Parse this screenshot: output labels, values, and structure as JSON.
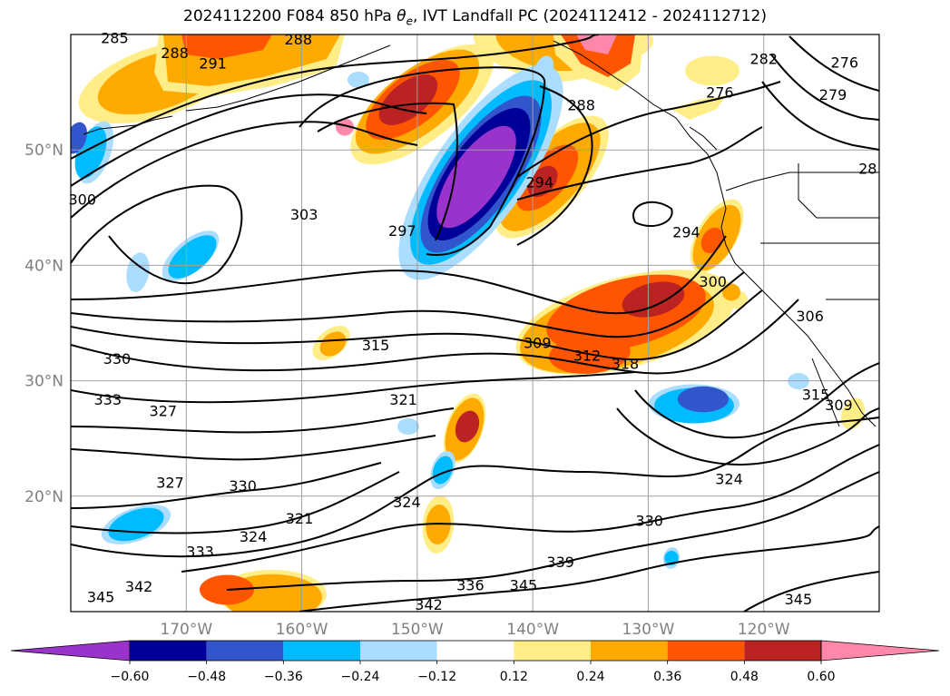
{
  "title": {
    "prefix": "2024112200 F084 850 hPa ",
    "theta": "θ",
    "theta_sub": "e",
    "suffix": ", IVT Landfall PC (2024112412 - 2024112712)"
  },
  "chart_data": {
    "type": "heatmap",
    "description_of_fields": {
      "filled": "IVT Landfall PC",
      "contours": "850 hPa theta-e (K)"
    },
    "lat_ticks": [
      "50°N",
      "40°N",
      "30°N",
      "20°N"
    ],
    "lat_values": [
      50,
      40,
      30,
      20
    ],
    "lon_ticks": [
      "170°W",
      "160°W",
      "150°W",
      "140°W",
      "130°W",
      "120°W"
    ],
    "lon_values": [
      -170,
      -160,
      -150,
      -140,
      -130,
      -120
    ],
    "extent": {
      "lon": [
        -180,
        -110
      ],
      "lat": [
        10,
        60
      ]
    },
    "grid": true,
    "colorbar": {
      "extend": "both",
      "levels": [
        -0.6,
        -0.48,
        -0.36,
        -0.24,
        -0.12,
        0.12,
        0.24,
        0.36,
        0.48,
        0.6
      ],
      "tick_labels": [
        "−0.60",
        "−0.48",
        "−0.36",
        "−0.24",
        "−0.12",
        "0.12",
        "0.24",
        "0.36",
        "0.48",
        "0.60"
      ],
      "colors": [
        "#9933cc",
        "#000099",
        "#3355cc",
        "#00bbff",
        "#aaddff",
        "#ffffff",
        "#ffee88",
        "#ffaa00",
        "#ff5500",
        "#bb2222",
        "#ff88aa"
      ]
    },
    "contour_labels": [
      {
        "text": "285",
        "lon": -176.2,
        "lat": 59.4
      },
      {
        "text": "288",
        "lon": -171.0,
        "lat": 58.1
      },
      {
        "text": "291",
        "lon": -167.7,
        "lat": 57.2
      },
      {
        "text": "288",
        "lon": -160.3,
        "lat": 59.3
      },
      {
        "text": "282",
        "lon": -120.0,
        "lat": 57.6
      },
      {
        "text": "276",
        "lon": -113.0,
        "lat": 57.3
      },
      {
        "text": "276",
        "lon": -123.8,
        "lat": 54.7
      },
      {
        "text": "279",
        "lon": -114.0,
        "lat": 54.5
      },
      {
        "text": "288",
        "lon": -135.8,
        "lat": 53.6
      },
      {
        "text": "294",
        "lon": -139.4,
        "lat": 46.9
      },
      {
        "text": "294",
        "lon": -126.7,
        "lat": 42.6
      },
      {
        "text": "297",
        "lon": -151.3,
        "lat": 42.7
      },
      {
        "text": "303",
        "lon": -159.8,
        "lat": 44.1
      },
      {
        "text": "300",
        "lon": -179.0,
        "lat": 45.4
      },
      {
        "text": "300",
        "lon": -124.4,
        "lat": 38.3
      },
      {
        "text": "306",
        "lon": -116.0,
        "lat": 35.3
      },
      {
        "text": "315",
        "lon": -153.6,
        "lat": 32.8
      },
      {
        "text": "309",
        "lon": -139.6,
        "lat": 33.0
      },
      {
        "text": "312",
        "lon": -135.3,
        "lat": 31.9
      },
      {
        "text": "318",
        "lon": -132.0,
        "lat": 31.2
      },
      {
        "text": "330",
        "lon": -176.0,
        "lat": 31.6
      },
      {
        "text": "333",
        "lon": -176.8,
        "lat": 28.1
      },
      {
        "text": "327",
        "lon": -172.0,
        "lat": 27.1
      },
      {
        "text": "321",
        "lon": -151.2,
        "lat": 28.1
      },
      {
        "text": "327",
        "lon": -171.4,
        "lat": 20.9
      },
      {
        "text": "330",
        "lon": -165.1,
        "lat": 20.6
      },
      {
        "text": "324",
        "lon": -150.9,
        "lat": 19.2
      },
      {
        "text": "321",
        "lon": -160.2,
        "lat": 17.8
      },
      {
        "text": "324",
        "lon": -164.2,
        "lat": 16.2
      },
      {
        "text": "333",
        "lon": -168.8,
        "lat": 14.9
      },
      {
        "text": "324",
        "lon": -123.0,
        "lat": 21.2
      },
      {
        "text": "330",
        "lon": -129.9,
        "lat": 17.6
      },
      {
        "text": "339",
        "lon": -137.6,
        "lat": 14.0
      },
      {
        "text": "336",
        "lon": -145.4,
        "lat": 12.0
      },
      {
        "text": "345",
        "lon": -140.8,
        "lat": 12.0
      },
      {
        "text": "342",
        "lon": -174.1,
        "lat": 11.9
      },
      {
        "text": "345",
        "lon": -177.4,
        "lat": 11.0
      },
      {
        "text": "342",
        "lon": -149.0,
        "lat": 10.3
      },
      {
        "text": "345",
        "lon": -117.0,
        "lat": 10.8
      },
      {
        "text": "309",
        "lon": -113.5,
        "lat": 27.6
      },
      {
        "text": "315",
        "lon": -115.5,
        "lat": 28.5
      },
      {
        "text": "28",
        "lon": -111.0,
        "lat": 48.1
      }
    ]
  }
}
